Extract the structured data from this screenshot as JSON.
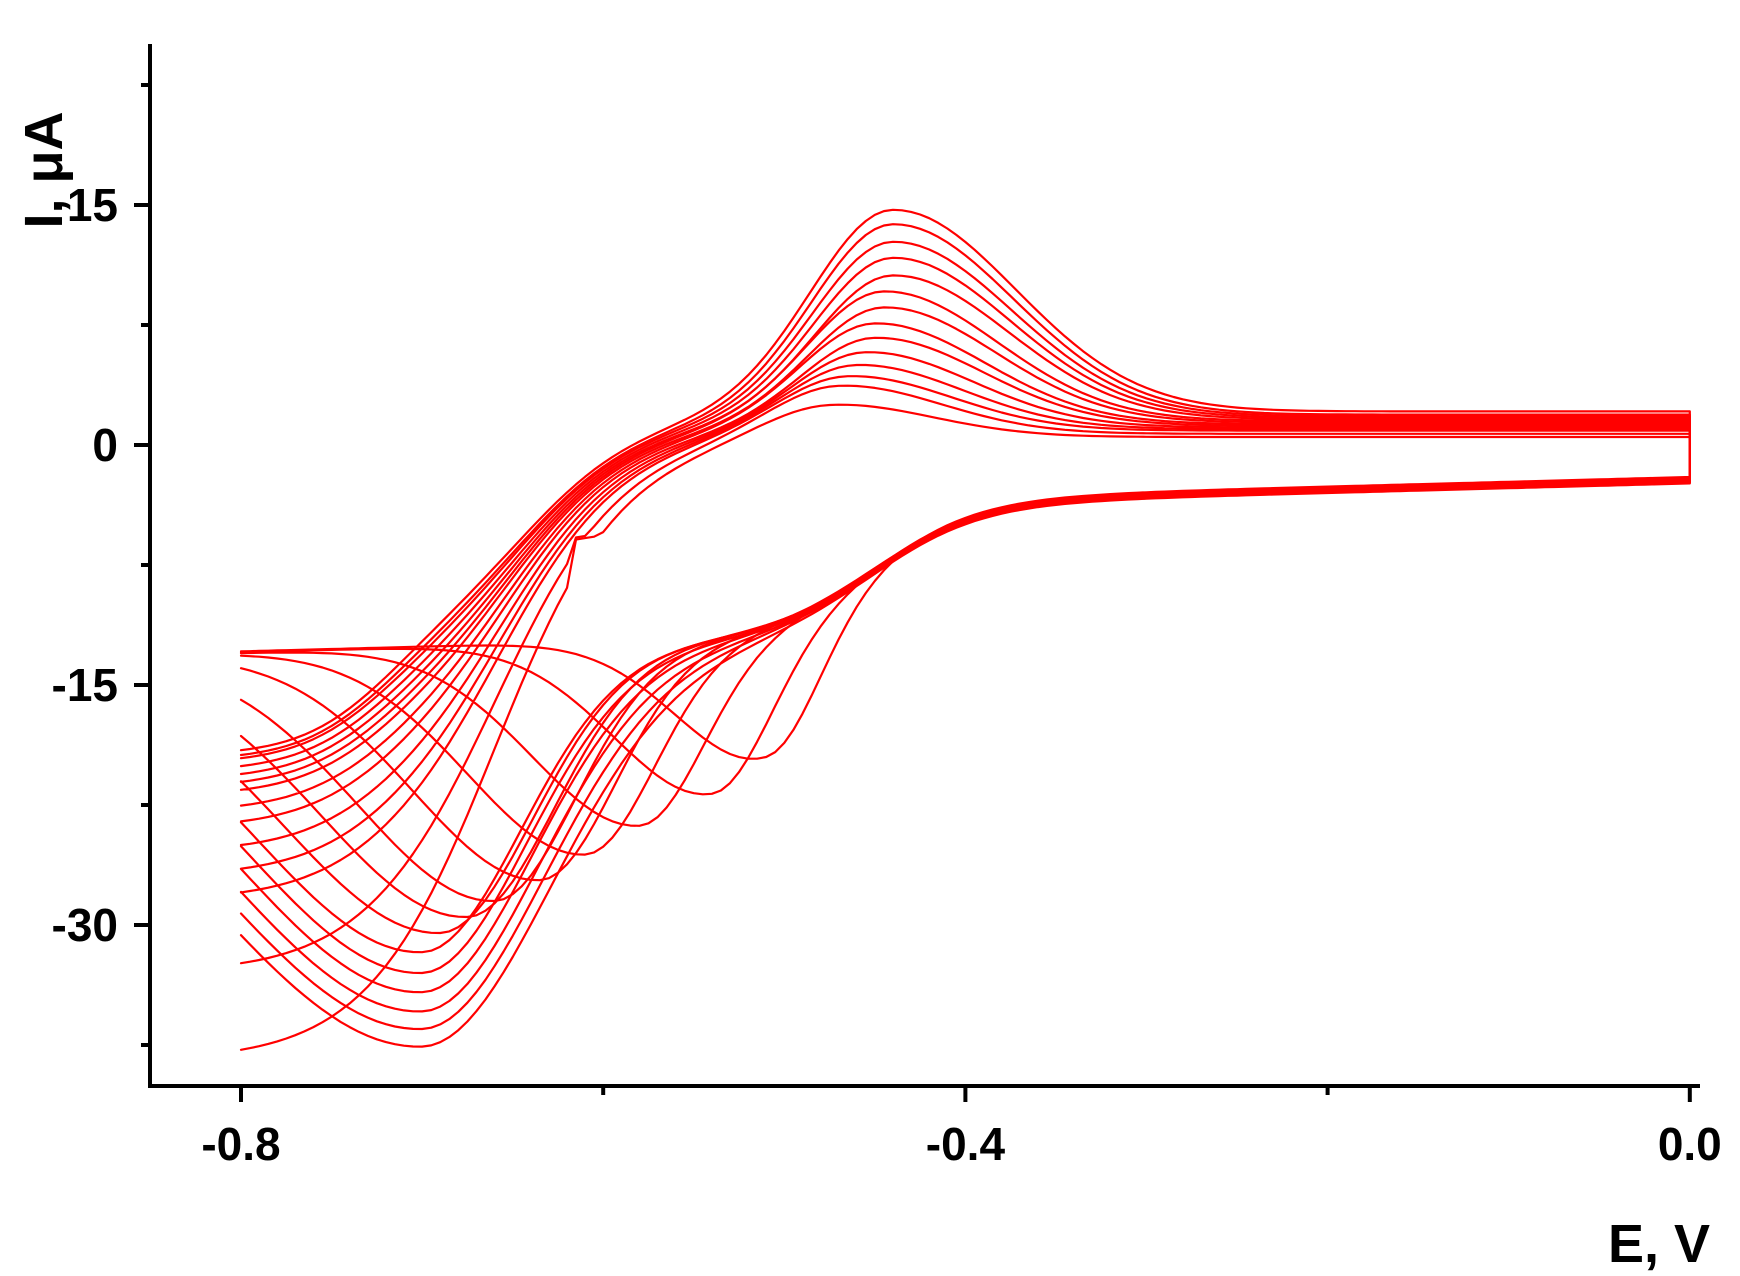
{
  "chart_data": {
    "type": "line",
    "title": "",
    "xlabel": "E, V",
    "ylabel": "I, μA",
    "xlim": [
      -0.85,
      0.0
    ],
    "ylim": [
      -40,
      25
    ],
    "x_ticks": [
      {
        "value": -0.8,
        "label": "-0.8"
      },
      {
        "value": -0.4,
        "label": "-0.4"
      },
      {
        "value": 0.0,
        "label": "0.0"
      }
    ],
    "x_minor_ticks": [
      -0.6,
      -0.2
    ],
    "y_ticks": [
      {
        "value": 15,
        "label": "15"
      },
      {
        "value": 0,
        "label": "0"
      },
      {
        "value": -15,
        "label": "-15"
      },
      {
        "value": -30,
        "label": "-30"
      }
    ],
    "y_minor_ticks": [
      22.5,
      7.5,
      -7.5,
      -22.5,
      -37.5
    ],
    "grid": false,
    "legend": "none",
    "series_color": "#ff0000",
    "scan_range_V": [
      -0.8,
      0.0
    ],
    "anodic_peak_potential_V": [
      -0.475,
      -0.47,
      -0.465,
      -0.46,
      -0.455,
      -0.45,
      -0.45,
      -0.445,
      -0.445,
      -0.44,
      -0.44,
      -0.44,
      -0.44,
      -0.44
    ],
    "anodic_peak_current_uA": [
      2.5,
      3.7,
      4.3,
      5.0,
      5.8,
      6.7,
      7.6,
      8.6,
      9.6,
      10.6,
      11.7,
      12.7,
      13.8,
      14.7
    ],
    "cathodic_peak_potential_V": [
      -0.51,
      -0.54,
      -0.58,
      -0.61,
      -0.635,
      -0.66,
      -0.675,
      -0.69,
      -0.7,
      -0.7,
      -0.7,
      -0.7,
      -0.7,
      -0.7
    ],
    "cathodic_peak_current_uA": [
      -19.5,
      -21.8,
      -23.8,
      -25.6,
      -27.2,
      -28.5,
      -29.5,
      -30.5,
      -31.7,
      -33.0,
      -34.2,
      -35.4,
      -36.5,
      -37.6
    ],
    "anodic_baseline_at_0V_uA": [
      0.5,
      0.7,
      0.9,
      1.0,
      1.1,
      1.2,
      1.3,
      1.4,
      1.5,
      1.6,
      1.7,
      1.8,
      1.9,
      2.1
    ],
    "cathodic_baseline_at_0V_uA": [
      -1.5,
      -1.55,
      -1.6,
      -1.6,
      -1.65,
      -1.7,
      -1.7,
      -1.75,
      -1.75,
      -1.8,
      -1.8,
      -1.85,
      -1.85,
      -1.9
    ],
    "current_at_negative_vertex_uA": [
      -38.5,
      -33.0,
      -28.5,
      -27.0,
      -25.5,
      -24.0,
      -23.0,
      -22.0,
      -21.5,
      -21.0,
      -20.5,
      -20.0,
      -19.8,
      -19.5
    ]
  }
}
